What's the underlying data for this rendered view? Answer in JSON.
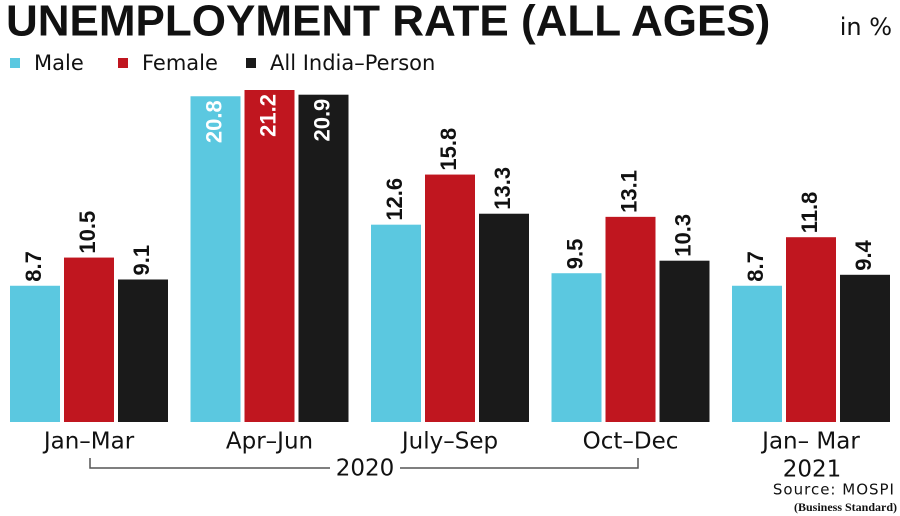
{
  "chart_data": {
    "type": "bar",
    "title": "UNEMPLOYMENT RATE (ALL AGES)",
    "unit": "in %",
    "categories": [
      "Jan–Mar",
      "Apr–Jun",
      "July–Sep",
      "Oct–Dec",
      "Jan– Mar"
    ],
    "series": [
      {
        "name": "Male",
        "color": "#5bc8e0",
        "values": [
          8.7,
          20.8,
          12.6,
          9.5,
          8.7
        ]
      },
      {
        "name": "Female",
        "color": "#c0161f",
        "values": [
          10.5,
          21.2,
          15.8,
          13.1,
          11.8
        ]
      },
      {
        "name": "All India–Person",
        "color": "#1a1a1a",
        "values": [
          9.1,
          20.9,
          13.3,
          10.3,
          9.4
        ]
      }
    ],
    "annotations": [
      "2020",
      "2021"
    ],
    "source": "Source: MOSPI",
    "credit": "(Business Standard)"
  }
}
